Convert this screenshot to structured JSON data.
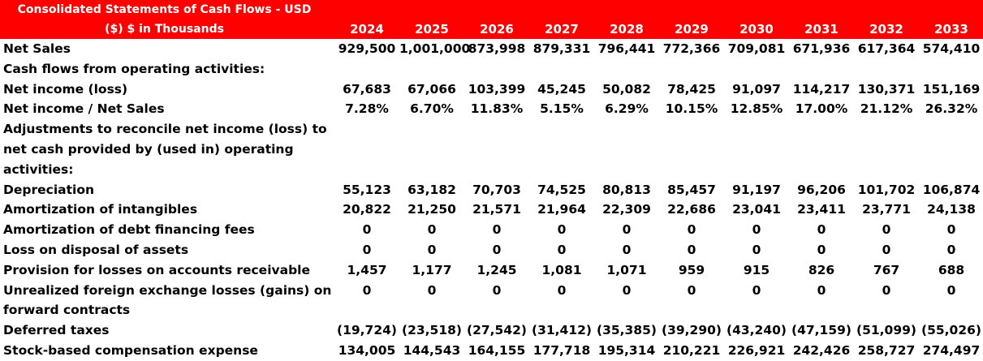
{
  "header": {
    "title_line1": "Consolidated Statements of Cash Flows - USD",
    "title_line2": "($) $ in Thousands",
    "years": [
      "2024",
      "2025",
      "2026",
      "2027",
      "2028",
      "2029",
      "2030",
      "2031",
      "2032",
      "2033"
    ]
  },
  "colors": {
    "header_bg": "#ff0000",
    "header_text": "#ffffff"
  },
  "rows": [
    {
      "label": "Net Sales",
      "values": [
        "929,500",
        "1,001,000",
        "873,998",
        "879,331",
        "796,441",
        "772,366",
        "709,081",
        "671,936",
        "617,364",
        "574,410"
      ]
    },
    {
      "label": "Cash flows from operating activities:",
      "values": []
    },
    {
      "label": "Net income (loss)",
      "values": [
        "67,683",
        "67,066",
        "103,399",
        "45,245",
        "50,082",
        "78,425",
        "91,097",
        "114,217",
        "130,371",
        "151,169"
      ]
    },
    {
      "label": "Net income / Net Sales",
      "values": [
        "7.28%",
        "6.70%",
        "11.83%",
        "5.15%",
        "6.29%",
        "10.15%",
        "12.85%",
        "17.00%",
        "21.12%",
        "26.32%"
      ]
    },
    {
      "label": "Adjustments to reconcile net income (loss) to",
      "values": []
    },
    {
      "label": "net cash provided by (used in) operating",
      "values": []
    },
    {
      "label": "activities:",
      "values": []
    },
    {
      "label": "Depreciation",
      "values": [
        "55,123",
        "63,182",
        "70,703",
        "74,525",
        "80,813",
        "85,457",
        "91,197",
        "96,206",
        "101,702",
        "106,874"
      ]
    },
    {
      "label": "Amortization of intangibles",
      "values": [
        "20,822",
        "21,250",
        "21,571",
        "21,964",
        "22,309",
        "22,686",
        "23,041",
        "23,411",
        "23,771",
        "24,138"
      ]
    },
    {
      "label": "Amortization of debt financing fees",
      "values": [
        "0",
        "0",
        "0",
        "0",
        "0",
        "0",
        "0",
        "0",
        "0",
        "0"
      ]
    },
    {
      "label": "Loss on disposal of assets",
      "values": [
        "0",
        "0",
        "0",
        "0",
        "0",
        "0",
        "0",
        "0",
        "0",
        "0"
      ]
    },
    {
      "label": "Provision for losses on accounts receivable",
      "values": [
        "1,457",
        "1,177",
        "1,245",
        "1,081",
        "1,071",
        "959",
        "915",
        "826",
        "767",
        "688"
      ]
    },
    {
      "label": "Unrealized foreign exchange losses (gains) on",
      "values": [
        "0",
        "0",
        "0",
        "0",
        "0",
        "0",
        "0",
        "0",
        "0",
        "0"
      ]
    },
    {
      "label": "forward contracts",
      "values": []
    },
    {
      "label": "Deferred taxes",
      "values": [
        "(19,724)",
        "(23,518)",
        "(27,542)",
        "(31,412)",
        "(35,385)",
        "(39,290)",
        "(43,240)",
        "(47,159)",
        "(51,099)",
        "(55,026)"
      ]
    },
    {
      "label": "Stock-based compensation expense",
      "values": [
        "134,005",
        "144,543",
        "164,155",
        "177,718",
        "195,314",
        "210,221",
        "226,921",
        "242,426",
        "258,727",
        "274,497"
      ]
    }
  ]
}
